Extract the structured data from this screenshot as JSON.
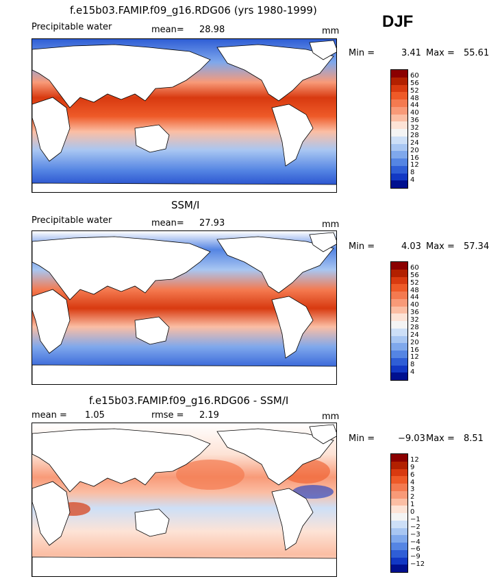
{
  "season": "DJF",
  "panels": [
    {
      "title": "f.e15b03.FAMIP.f09_g16.RDG06 (yrs 1980-1999)",
      "left_label": "Precipitable water",
      "stat_label": "mean=",
      "stat_value": "28.98",
      "units": "mm",
      "min_label": "Min =",
      "min_value": "3.41",
      "max_label": "Max =",
      "max_value": "55.61"
    },
    {
      "title": "SSM/I",
      "left_label": "Precipitable water",
      "stat_label": "mean=",
      "stat_value": "27.93",
      "units": "mm",
      "min_label": "Min =",
      "min_value": "4.03",
      "max_label": "Max =",
      "max_value": "57.34"
    },
    {
      "title": "f.e15b03.FAMIP.f09_g16.RDG06 - SSM/I",
      "mean_label": "mean =",
      "mean_value": "1.05",
      "rmse_label": "rmse =",
      "rmse_value": "2.19",
      "units": "mm",
      "min_label": "Min =",
      "min_value": "−9.03",
      "max_label": "Max =",
      "max_value": "8.51"
    }
  ],
  "colorbar_abs": {
    "ticks": [
      "60",
      "56",
      "52",
      "48",
      "44",
      "40",
      "36",
      "32",
      "28",
      "24",
      "20",
      "16",
      "12",
      "8",
      "4"
    ],
    "colors": [
      "#8b0000",
      "#b22000",
      "#d83a10",
      "#ee5a28",
      "#f47a50",
      "#f89a78",
      "#fbbea4",
      "#fde3d6",
      "#f4f4f4",
      "#cddff7",
      "#a8c6f2",
      "#7fa8ec",
      "#5585e3",
      "#2f5ed6",
      "#1238c4",
      "#00108f"
    ]
  },
  "colorbar_diff": {
    "ticks": [
      "12",
      "9",
      "6",
      "4",
      "3",
      "2",
      "1",
      "0",
      "−1",
      "−2",
      "−3",
      "−4",
      "−6",
      "−9",
      "−12"
    ],
    "colors": [
      "#8b0000",
      "#b22000",
      "#d83a10",
      "#ee5a28",
      "#f47a50",
      "#f89a78",
      "#fbbea4",
      "#fde3d6",
      "#f4f4f4",
      "#cddff7",
      "#a8c6f2",
      "#7fa8ec",
      "#5585e3",
      "#2f5ed6",
      "#1238c4",
      "#00108f"
    ]
  }
}
